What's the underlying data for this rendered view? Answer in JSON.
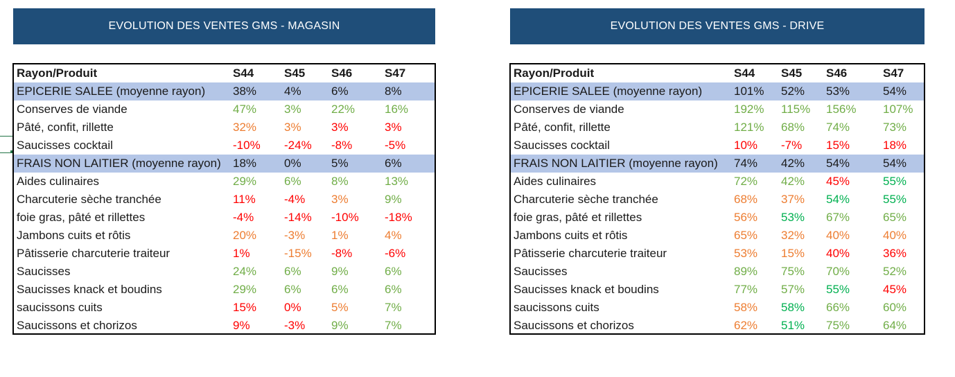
{
  "colors": {
    "banner_bg": "#1f4e79",
    "avg_row_bg": "#b4c6e7",
    "green": "#70ad47",
    "dark_green": "#00b050",
    "orange": "#ed7d31",
    "red": "#ff0000",
    "black": "#1a1a1a"
  },
  "left": {
    "title": "EVOLUTION DES VENTES GMS - MAGASIN",
    "headers": [
      "Rayon/Produit",
      "S44",
      "S45",
      "S46",
      "S47"
    ],
    "rows": [
      {
        "label": "EPICERIE SALEE (moyenne rayon)",
        "avg": true,
        "values": [
          "38%",
          "4%",
          "6%",
          "8%"
        ],
        "colors": [
          "black",
          "black",
          "black",
          "black"
        ]
      },
      {
        "label": "Conserves de viande",
        "avg": false,
        "values": [
          "47%",
          "3%",
          "22%",
          "16%"
        ],
        "colors": [
          "green",
          "green",
          "green",
          "green"
        ]
      },
      {
        "label": "Pâté, confit, rillette",
        "avg": false,
        "values": [
          "32%",
          "3%",
          "3%",
          "3%"
        ],
        "colors": [
          "orange",
          "orange",
          "red",
          "red"
        ]
      },
      {
        "label": "Saucisses cocktail",
        "avg": false,
        "values": [
          "-10%",
          "-24%",
          "-8%",
          "-5%"
        ],
        "colors": [
          "red",
          "red",
          "red",
          "red"
        ]
      },
      {
        "label": "FRAIS NON LAITIER (moyenne rayon)",
        "avg": true,
        "values": [
          "18%",
          "0%",
          "5%",
          "6%"
        ],
        "colors": [
          "black",
          "black",
          "black",
          "black"
        ]
      },
      {
        "label": "Aides culinaires",
        "avg": false,
        "values": [
          "29%",
          "6%",
          "8%",
          "13%"
        ],
        "colors": [
          "green",
          "green",
          "green",
          "green"
        ]
      },
      {
        "label": "Charcuterie sèche tranchée",
        "avg": false,
        "values": [
          "11%",
          "-4%",
          "3%",
          "9%"
        ],
        "colors": [
          "red",
          "red",
          "orange",
          "green"
        ]
      },
      {
        "label": "foie gras, pâté et rillettes",
        "avg": false,
        "values": [
          "-4%",
          "-14%",
          "-10%",
          "-18%"
        ],
        "colors": [
          "red",
          "red",
          "red",
          "red"
        ]
      },
      {
        "label": "Jambons cuits et rôtis",
        "avg": false,
        "values": [
          "20%",
          "-3%",
          "1%",
          "4%"
        ],
        "colors": [
          "orange",
          "orange",
          "orange",
          "orange"
        ]
      },
      {
        "label": "Pâtisserie charcuterie traiteur",
        "avg": false,
        "values": [
          "1%",
          "-15%",
          "-8%",
          "-6%"
        ],
        "colors": [
          "red",
          "orange",
          "red",
          "red"
        ]
      },
      {
        "label": "Saucisses",
        "avg": false,
        "values": [
          "24%",
          "6%",
          "9%",
          "6%"
        ],
        "colors": [
          "green",
          "green",
          "green",
          "green"
        ]
      },
      {
        "label": "Saucisses knack et boudins",
        "avg": false,
        "values": [
          "29%",
          "6%",
          "6%",
          "6%"
        ],
        "colors": [
          "green",
          "green",
          "green",
          "green"
        ]
      },
      {
        "label": "saucissons cuits",
        "avg": false,
        "values": [
          "15%",
          "0%",
          "5%",
          "7%"
        ],
        "colors": [
          "red",
          "red",
          "orange",
          "green"
        ]
      },
      {
        "label": "Saucissons et chorizos",
        "avg": false,
        "values": [
          "9%",
          "-3%",
          "9%",
          "7%"
        ],
        "colors": [
          "red",
          "red",
          "green",
          "green"
        ]
      }
    ]
  },
  "right": {
    "title": "EVOLUTION DES VENTES GMS - DRIVE",
    "headers": [
      "Rayon/Produit",
      "S44",
      "S45",
      "S46",
      "S47"
    ],
    "rows": [
      {
        "label": "EPICERIE SALEE (moyenne rayon)",
        "avg": true,
        "values": [
          "101%",
          "52%",
          "53%",
          "54%"
        ],
        "colors": [
          "black",
          "black",
          "black",
          "black"
        ]
      },
      {
        "label": "Conserves de viande",
        "avg": false,
        "values": [
          "192%",
          "115%",
          "156%",
          "107%"
        ],
        "colors": [
          "green",
          "green",
          "green",
          "green"
        ]
      },
      {
        "label": "Pâté, confit, rillette",
        "avg": false,
        "values": [
          "121%",
          "68%",
          "74%",
          "73%"
        ],
        "colors": [
          "green",
          "green",
          "green",
          "green"
        ]
      },
      {
        "label": "Saucisses cocktail",
        "avg": false,
        "values": [
          "10%",
          "-7%",
          "15%",
          "18%"
        ],
        "colors": [
          "red",
          "red",
          "red",
          "red"
        ]
      },
      {
        "label": "FRAIS NON LAITIER (moyenne rayon)",
        "avg": true,
        "values": [
          "74%",
          "42%",
          "54%",
          "54%"
        ],
        "colors": [
          "black",
          "black",
          "black",
          "black"
        ]
      },
      {
        "label": "Aides culinaires",
        "avg": false,
        "values": [
          "72%",
          "42%",
          "45%",
          "55%"
        ],
        "colors": [
          "green",
          "green",
          "red",
          "dgreen"
        ]
      },
      {
        "label": "Charcuterie sèche tranchée",
        "avg": false,
        "values": [
          "68%",
          "37%",
          "54%",
          "55%"
        ],
        "colors": [
          "orange",
          "orange",
          "dgreen",
          "dgreen"
        ]
      },
      {
        "label": "foie gras, pâté et rillettes",
        "avg": false,
        "values": [
          "56%",
          "53%",
          "67%",
          "65%"
        ],
        "colors": [
          "orange",
          "dgreen",
          "green",
          "green"
        ]
      },
      {
        "label": "Jambons cuits et rôtis",
        "avg": false,
        "values": [
          "65%",
          "32%",
          "40%",
          "40%"
        ],
        "colors": [
          "orange",
          "orange",
          "orange",
          "orange"
        ]
      },
      {
        "label": "Pâtisserie charcuterie traiteur",
        "avg": false,
        "values": [
          "53%",
          "15%",
          "40%",
          "36%"
        ],
        "colors": [
          "orange",
          "orange",
          "red",
          "red"
        ]
      },
      {
        "label": "Saucisses",
        "avg": false,
        "values": [
          "89%",
          "75%",
          "70%",
          "52%"
        ],
        "colors": [
          "green",
          "green",
          "green",
          "green"
        ]
      },
      {
        "label": "Saucisses knack et boudins",
        "avg": false,
        "values": [
          "77%",
          "57%",
          "55%",
          "45%"
        ],
        "colors": [
          "green",
          "green",
          "dgreen",
          "red"
        ]
      },
      {
        "label": "saucissons cuits",
        "avg": false,
        "values": [
          "58%",
          "58%",
          "66%",
          "60%"
        ],
        "colors": [
          "orange",
          "dgreen",
          "green",
          "green"
        ]
      },
      {
        "label": "Saucissons et chorizos",
        "avg": false,
        "values": [
          "62%",
          "51%",
          "75%",
          "64%"
        ],
        "colors": [
          "orange",
          "dgreen",
          "green",
          "green"
        ]
      }
    ]
  }
}
